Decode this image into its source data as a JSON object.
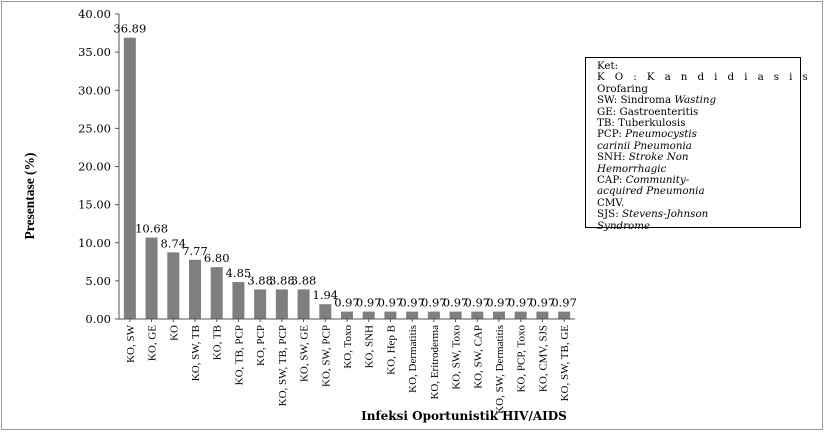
{
  "chart_data": {
    "type": "bar",
    "categories": [
      "KO, SW",
      "KO, GE",
      "KO",
      "KO, SW, TB",
      "KO, TB",
      "KO, TB, PCP",
      "KO, PCP",
      "KO, SW, TB, PCP",
      "KO, SW, GE",
      "KO, SW, PCP",
      "KO, Toxo",
      "KO, SNH",
      "KO, Hep B",
      "KO, Dermatitis",
      "KO, Eritroderma",
      "KO, SW, Toxo",
      "KO, SW, CAP",
      "KO, SW, Dermatitis",
      "KO, PCP, Toxo",
      "KO, CMV, SJS",
      "KO, SW, TB, GE"
    ],
    "values": [
      36.89,
      10.68,
      8.74,
      7.77,
      6.8,
      4.85,
      3.88,
      3.88,
      3.88,
      1.94,
      0.97,
      0.97,
      0.97,
      0.97,
      0.97,
      0.97,
      0.97,
      0.97,
      0.97,
      0.97,
      0.97
    ],
    "data_labels": [
      "36.89",
      "10.68",
      "8.74",
      "7.77",
      "6.80",
      "4.85",
      "3.88",
      "3.88",
      "3.88",
      "1.94",
      "0.97",
      "0.97",
      "0.97",
      "0.97",
      "0.97",
      "0.97",
      "0.97",
      "0.97",
      "0.97",
      "0.97",
      "0.97"
    ],
    "y_ticks": [
      "0.00",
      "5.00",
      "10.00",
      "15.00",
      "20.00",
      "25.00",
      "30.00",
      "35.00",
      "40.00"
    ],
    "ylim": [
      0,
      40
    ],
    "ylabel": "Presentase (%)",
    "xlabel": "Infeksi Oportunistik HIV/AIDS",
    "grid": false,
    "legend_placement": "top-right",
    "bar_color": "#7f7f7f",
    "legend": {
      "heading": "Ket:",
      "lines": [
        {
          "wide": "K O :  K a n d i d i a s i s",
          "plain": "",
          "ital": ""
        },
        {
          "wide": "",
          "plain": "Orofaring",
          "ital": ""
        },
        {
          "wide": "",
          "plain": "SW: Sindroma ",
          "ital": "Wasting"
        },
        {
          "wide": "",
          "plain": "GE: Gastroenteritis",
          "ital": ""
        },
        {
          "wide": "",
          "plain": "TB: Tuberkulosis",
          "ital": ""
        },
        {
          "wide": "",
          "plain": "PCP:  ",
          "ital": "Pneumocystis"
        },
        {
          "wide": "",
          "plain": "",
          "ital": "carinii Pneumonia"
        },
        {
          "wide": "",
          "plain": "SNH:  ",
          "ital": "Stroke  Non"
        },
        {
          "wide": "",
          "plain": "",
          "ital": "Hemorrhagic"
        },
        {
          "wide": "",
          "plain": "CAP:  ",
          "ital": "Community-"
        },
        {
          "wide": "",
          "plain": "",
          "ital": "acquired Pneumonia"
        },
        {
          "wide": "",
          "plain": "CMV.",
          "ital": ""
        },
        {
          "wide": "",
          "plain": "SJS:  ",
          "ital": "Stevens-Johnson"
        },
        {
          "wide": "",
          "plain": "",
          "ital": "Syndrome"
        }
      ]
    }
  }
}
